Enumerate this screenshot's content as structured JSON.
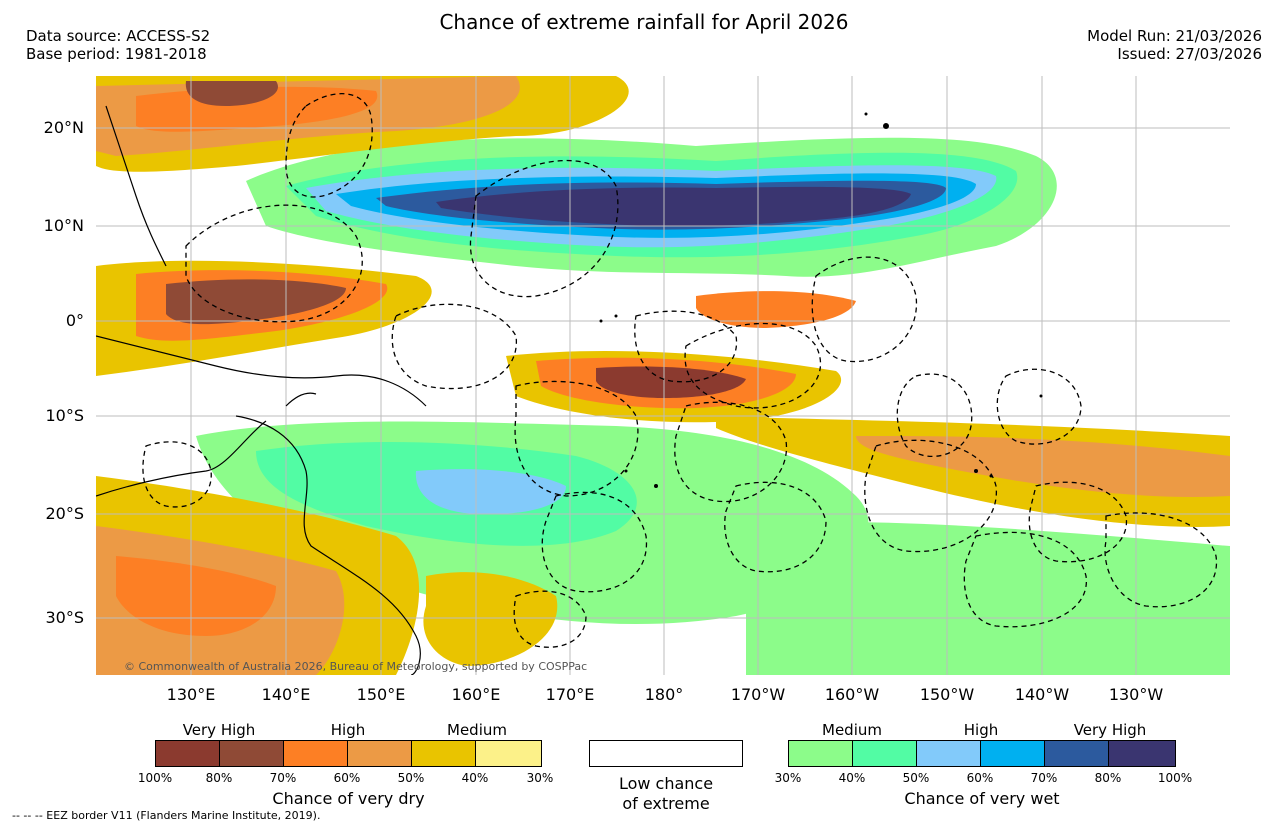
{
  "header": {
    "title": "Chance of extreme rainfall for April 2026",
    "data_source": "Data source: ACCESS-S2",
    "base_period": "Base period: 1981-2018",
    "model_run": "Model Run: 21/03/2026",
    "issued": "Issued: 27/03/2026"
  },
  "map": {
    "lat_labels": [
      "20°N",
      "10°N",
      "0°",
      "10°S",
      "20°S",
      "30°S"
    ],
    "lon_labels": [
      "130°E",
      "140°E",
      "150°E",
      "160°E",
      "170°E",
      "180°",
      "170°W",
      "160°W",
      "150°W",
      "140°W",
      "130°W"
    ],
    "copyright": "© Commonwealth of Australia 2026, Bureau of Meteorology, supported by COSPPac"
  },
  "legend": {
    "dry": {
      "headings": [
        "Very High",
        "High",
        "Medium"
      ],
      "colors": [
        "#8b3a2f",
        "#8f4a36",
        "#fd7f24",
        "#ec9a45",
        "#e9c400",
        "#fcf189"
      ],
      "ticks": [
        "100%",
        "80%",
        "70%",
        "60%",
        "50%",
        "40%",
        "30%"
      ],
      "title": "Chance of very dry"
    },
    "low": {
      "line1": "Low chance",
      "line2": "of extreme"
    },
    "wet": {
      "headings": [
        "Medium",
        "High",
        "Very High"
      ],
      "colors": [
        "#8cfc8a",
        "#52fca4",
        "#82cafa",
        "#00b0f0",
        "#2c5a9e",
        "#3a3570"
      ],
      "ticks": [
        "30%",
        "40%",
        "50%",
        "60%",
        "70%",
        "80%",
        "100%"
      ],
      "title": "Chance of very wet"
    }
  },
  "footer": {
    "eez_note": "--  --  -- EEZ border V11 (Flanders Marine Institute, 2019)."
  }
}
